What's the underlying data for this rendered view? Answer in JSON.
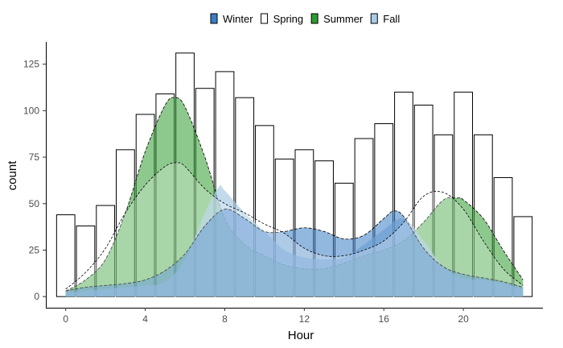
{
  "chart_data": {
    "type": "bar",
    "xlabel": "Hour",
    "ylabel": "count",
    "xlim": [
      -1,
      24
    ],
    "ylim": [
      -6,
      137
    ],
    "x_ticks": [
      0,
      4,
      8,
      12,
      16,
      20
    ],
    "y_ticks": [
      0,
      25,
      50,
      75,
      100,
      125
    ],
    "grid": false,
    "legend_position": "top",
    "legend": [
      {
        "name": "Winter",
        "color": "#3a7dc4",
        "style": "filled"
      },
      {
        "name": "Spring",
        "color": "#ffffff",
        "style": "outline"
      },
      {
        "name": "Summer",
        "color": "#2f9a2f",
        "style": "filled"
      },
      {
        "name": "Fall",
        "color": "#a9cbe6",
        "style": "filled"
      }
    ],
    "bars": {
      "series": "Spring",
      "x": [
        0,
        1,
        2,
        3,
        4,
        5,
        6,
        7,
        8,
        9,
        10,
        11,
        12,
        13,
        14,
        15,
        16,
        17,
        18,
        19,
        20,
        21,
        22,
        23
      ],
      "values": [
        44,
        38,
        49,
        79,
        98,
        109,
        131,
        112,
        121,
        107,
        92,
        74,
        79,
        73,
        61,
        85,
        93,
        110,
        103,
        87,
        110,
        87,
        64,
        43
      ]
    },
    "densities": [
      {
        "name": "Summer",
        "x": [
          0,
          1,
          2,
          3,
          4,
          5,
          5.5,
          6,
          7,
          8,
          9,
          10,
          11,
          12,
          13,
          14,
          15,
          16,
          17,
          18,
          19,
          19.7,
          20,
          21,
          22,
          23
        ],
        "y": [
          3,
          9,
          20,
          45,
          78,
          103,
          107,
          102,
          75,
          42,
          28,
          22,
          17,
          15,
          15,
          18,
          22,
          25,
          30,
          40,
          52,
          53,
          52,
          42,
          25,
          9
        ]
      },
      {
        "name": "Fall",
        "x": [
          0,
          1,
          2,
          3,
          4,
          5,
          6,
          7,
          7.7,
          8,
          9,
          10,
          11,
          12,
          13,
          14,
          15,
          16,
          17,
          18,
          19,
          20,
          21,
          22,
          23
        ],
        "y": [
          2,
          3,
          4,
          5,
          6,
          8,
          20,
          45,
          59,
          57,
          45,
          35,
          25,
          21,
          20,
          21,
          28,
          36,
          42,
          30,
          16,
          10,
          9,
          7,
          4
        ]
      },
      {
        "name": "Winter",
        "x": [
          0,
          1,
          2,
          3,
          4,
          5,
          6,
          7,
          8,
          9,
          10,
          11,
          12,
          13,
          14,
          15,
          16,
          16.5,
          17,
          18,
          19,
          20,
          21,
          22,
          23
        ],
        "y": [
          3,
          5,
          6,
          7,
          9,
          14,
          23,
          38,
          47,
          42,
          35,
          35,
          37,
          35,
          31,
          33,
          42,
          46,
          43,
          26,
          16,
          12,
          10,
          8,
          5
        ]
      },
      {
        "name": "Spring",
        "x": [
          0,
          1,
          2,
          3,
          4,
          5,
          5.6,
          6,
          7,
          8,
          9,
          10,
          11,
          12,
          13,
          14,
          15,
          16,
          17,
          18,
          19,
          20,
          21,
          22,
          23
        ],
        "y": [
          4,
          13,
          26,
          45,
          60,
          70,
          72,
          70,
          58,
          50,
          45,
          39,
          34,
          26,
          22,
          22,
          25,
          30,
          40,
          54,
          56,
          47,
          30,
          15,
          6
        ]
      }
    ]
  }
}
